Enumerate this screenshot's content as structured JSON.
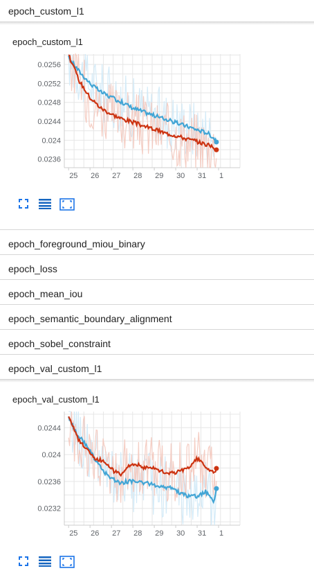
{
  "top_header": {
    "label": "epoch_custom_l1"
  },
  "charts": [
    {
      "card_title": "epoch_custom_l1",
      "icons": [
        "fullscreen-icon",
        "data-table-icon",
        "fit-domain-icon"
      ],
      "chart_data": {
        "type": "line",
        "title": "epoch_custom_l1",
        "xlabel": "",
        "ylabel": "",
        "x_ticks": [
          "25",
          "26",
          "27",
          "28",
          "29",
          "30",
          "31",
          "1"
        ],
        "y_ticks": [
          0.0256,
          0.0252,
          0.0248,
          0.0244,
          0.024,
          0.0236
        ],
        "y_tick_labels": [
          "0.0256",
          "0.0252",
          "0.0248",
          "0.0244",
          "0.024",
          "0.0236"
        ],
        "ylim": [
          0.02342,
          0.02582
        ],
        "grid": true,
        "series": [
          {
            "color": "#42a5d5",
            "raw_color": "#cfe9f7",
            "x": [
              25.0,
              25.5,
              26.0,
              26.5,
              27.0,
              27.5,
              28.0,
              28.5,
              29.0,
              29.5,
              30.0,
              30.5,
              31.0,
              31.5,
              31.9
            ],
            "values": [
              0.02575,
              0.02545,
              0.0252,
              0.02502,
              0.0249,
              0.0248,
              0.02468,
              0.0246,
              0.02452,
              0.02445,
              0.02437,
              0.0243,
              0.02422,
              0.02415,
              0.024
            ]
          },
          {
            "color": "#cc3311",
            "raw_color": "#f4c8bd",
            "x": [
              25.0,
              25.5,
              26.0,
              26.5,
              27.0,
              27.5,
              28.0,
              28.5,
              29.0,
              29.5,
              30.0,
              30.5,
              31.0,
              31.5,
              31.9
            ],
            "values": [
              0.0258,
              0.02525,
              0.0249,
              0.02468,
              0.02455,
              0.02445,
              0.02438,
              0.0243,
              0.02423,
              0.02415,
              0.0241,
              0.02403,
              0.02397,
              0.0239,
              0.02382
            ]
          }
        ]
      }
    },
    {
      "card_title": "epoch_val_custom_l1",
      "icons": [
        "fullscreen-icon",
        "data-table-icon",
        "fit-domain-icon"
      ],
      "chart_data": {
        "type": "line",
        "title": "epoch_val_custom_l1",
        "xlabel": "",
        "ylabel": "",
        "x_ticks": [
          "25",
          "26",
          "27",
          "28",
          "29",
          "30",
          "31",
          "1"
        ],
        "y_ticks": [
          0.0244,
          0.024,
          0.0236,
          0.0232
        ],
        "y_tick_labels": [
          "0.0244",
          "0.024",
          "0.0236",
          "0.0232"
        ],
        "ylim": [
          0.02295,
          0.02464
        ],
        "grid": true,
        "series": [
          {
            "color": "#42a5d5",
            "raw_color": "#cfe9f7",
            "x": [
              25.0,
              25.4,
              25.8,
              26.2,
              26.6,
              27.0,
              27.4,
              27.8,
              28.2,
              28.6,
              29.0,
              29.4,
              29.8,
              30.2,
              30.6,
              31.0,
              31.4,
              31.8,
              31.9
            ],
            "values": [
              0.02455,
              0.0243,
              0.02415,
              0.02395,
              0.02375,
              0.02365,
              0.02358,
              0.0236,
              0.0236,
              0.02358,
              0.02355,
              0.02352,
              0.0235,
              0.02343,
              0.02338,
              0.02338,
              0.02345,
              0.0233,
              0.0235
            ]
          },
          {
            "color": "#cc3311",
            "raw_color": "#f4c8bd",
            "x": [
              25.0,
              25.4,
              25.8,
              26.2,
              26.6,
              27.0,
              27.4,
              27.8,
              28.2,
              28.6,
              29.0,
              29.4,
              29.8,
              30.2,
              30.6,
              31.0,
              31.4,
              31.8,
              31.9
            ],
            "values": [
              0.02458,
              0.02425,
              0.0241,
              0.02395,
              0.0239,
              0.02378,
              0.0237,
              0.02385,
              0.02385,
              0.0238,
              0.0238,
              0.02375,
              0.02372,
              0.02375,
              0.0238,
              0.02395,
              0.0238,
              0.02375,
              0.02378
            ]
          }
        ]
      }
    }
  ],
  "collapsed_sections": [
    {
      "label": "epoch_foreground_miou_binary"
    },
    {
      "label": "epoch_loss"
    },
    {
      "label": "epoch_mean_iou"
    },
    {
      "label": "epoch_semantic_boundary_alignment"
    },
    {
      "label": "epoch_sobel_constraint"
    },
    {
      "label": "epoch_val_custom_l1"
    }
  ]
}
